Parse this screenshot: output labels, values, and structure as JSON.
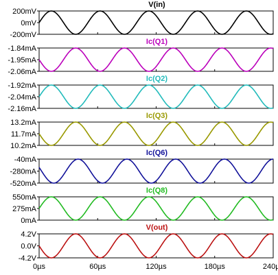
{
  "chart_data": {
    "type": "line",
    "x_axis": {
      "ticks": [
        0,
        60,
        120,
        180,
        240
      ],
      "tick_labels": [
        "0µs",
        "60µs",
        "120µs",
        "180µs",
        "240µs"
      ],
      "range": [
        0,
        240
      ]
    },
    "panels": [
      {
        "title": "V(in)",
        "color": "#000000",
        "ticks": [
          "200mV",
          "0mV",
          "-200mV"
        ],
        "ylim": [
          -200,
          200
        ],
        "y_values": [
          -200,
          0,
          200
        ],
        "period_us": 50,
        "phase": 0.0,
        "peak_x_us": 12.5
      },
      {
        "title": "Ic(Q1)",
        "color": "#bb00bb",
        "ticks": [
          "-1.84mA",
          "-1.95mA",
          "-2.06mA"
        ],
        "ylim": [
          -2.06,
          -1.84
        ],
        "y_values": [
          -2.06,
          -1.95,
          -1.84
        ],
        "period_us": 50,
        "phase": 0.0,
        "peak_x_us": 37.5
      },
      {
        "title": "Ic(Q2)",
        "color": "#22bbbb",
        "ticks": [
          "-1.92mA",
          "-2.04mA",
          "-2.16mA"
        ],
        "ylim": [
          -2.16,
          -1.92
        ],
        "y_values": [
          -2.16,
          -2.04,
          -1.92
        ],
        "period_us": 50,
        "phase": 0.0,
        "peak_x_us": 12.5
      },
      {
        "title": "Ic(Q3)",
        "color": "#999900",
        "ticks": [
          "13.2mA",
          "11.7mA",
          "10.2mA"
        ],
        "ylim": [
          10.2,
          13.2
        ],
        "y_values": [
          10.2,
          11.7,
          13.2
        ],
        "period_us": 50,
        "phase": 0.0,
        "peak_x_us": 37.5
      },
      {
        "title": "Ic(Q6)",
        "color": "#111199",
        "ticks": [
          "-40mA",
          "-280mA",
          "-520mA"
        ],
        "ylim": [
          -520,
          -40
        ],
        "y_values": [
          -520,
          -280,
          -40
        ],
        "period_us": 50,
        "phase": 0.0,
        "peak_x_us": 40
      },
      {
        "title": "Ic(Q8)",
        "color": "#22bb22",
        "ticks": [
          "550mA",
          "275mA",
          "0mA"
        ],
        "ylim": [
          0,
          550
        ],
        "y_values": [
          0,
          275,
          550
        ],
        "period_us": 50,
        "phase": 0.0,
        "peak_x_us": 12.5
      },
      {
        "title": "V(out)",
        "color": "#bb1111",
        "ticks": [
          "4.2V",
          "0.0V",
          "-4.2V"
        ],
        "ylim": [
          -4.2,
          4.2
        ],
        "y_values": [
          -4.2,
          0,
          4.2
        ],
        "period_us": 50,
        "phase": 0.0,
        "peak_x_us": 37.5
      }
    ]
  }
}
